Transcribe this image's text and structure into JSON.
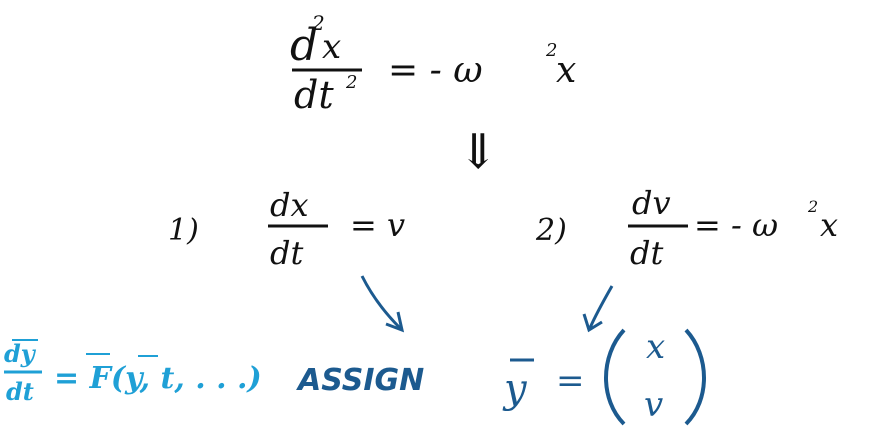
{
  "colors": {
    "ink": "#111111",
    "blue": "#1c5a8f",
    "cyan": "#1fa0d6"
  },
  "equations": {
    "main": {
      "num_d": "d",
      "num_sup": "2",
      "num_var": "x",
      "den_d": "dt",
      "den_sup": "2",
      "rhs": "= - ω",
      "rhs_sup": "2",
      "rhs_var": "x"
    },
    "implies": "⇓",
    "eq1": {
      "index": "1)",
      "num": "dx",
      "den": "dt",
      "rhs": "= v"
    },
    "eq2": {
      "index": "2)",
      "num": "dv",
      "den": "dt",
      "rhs": "= - ω",
      "rhs_sup": "2",
      "rhs_var": "x"
    },
    "general": {
      "num": "dy",
      "den": "dt",
      "rhs": "= F(y, t, . . .)"
    },
    "assign": "ASSIGN",
    "vector": {
      "lhs": "y",
      "eq": "=",
      "top": "x",
      "bottom": "v"
    }
  }
}
